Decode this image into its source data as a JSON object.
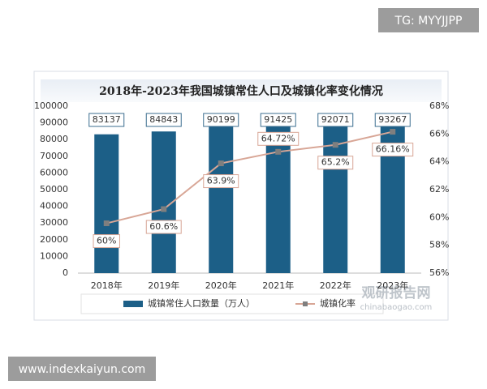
{
  "chart_data": {
    "type": "bar_line",
    "title": "2018年-2023年我国城镇常住人口及城镇化率变化情况",
    "categories": [
      "2018年",
      "2019年",
      "2020年",
      "2021年",
      "2022年",
      "2023年"
    ],
    "series": [
      {
        "name": "城镇常住人口数量（万人）",
        "type": "bar",
        "color": "#1c5f87",
        "values": [
          83137,
          84843,
          90199,
          91425,
          92071,
          93267
        ]
      },
      {
        "name": "城镇化率",
        "type": "line",
        "axis": "y2",
        "color": "#d8a696",
        "values": [
          59.58,
          60.6,
          63.89,
          64.72,
          65.22,
          66.16
        ],
        "value_labels": [
          "60%",
          "60.6%",
          "63.9%",
          "64.72%",
          "65.2%",
          "66.16%"
        ]
      }
    ],
    "ylim": [
      0,
      100000
    ],
    "yticks": [
      0,
      10000,
      20000,
      30000,
      40000,
      50000,
      60000,
      70000,
      80000,
      90000,
      100000
    ],
    "y2lim": [
      56,
      68
    ],
    "y2ticks": [
      {
        "value": 56,
        "label": "56%"
      },
      {
        "value": 58,
        "label": "58%"
      },
      {
        "value": 60,
        "label": "60%"
      },
      {
        "value": 62,
        "label": "62%"
      },
      {
        "value": 64,
        "label": "64%"
      },
      {
        "value": 66,
        "label": "66%"
      },
      {
        "value": 68,
        "label": "68%"
      }
    ],
    "grid": false
  },
  "watermark": {
    "title": "观研报告网",
    "url": "chinabaogao.com"
  },
  "badges": {
    "top": "TG: MYYJJPP",
    "bottom": "www.indexkaiyun.com"
  }
}
